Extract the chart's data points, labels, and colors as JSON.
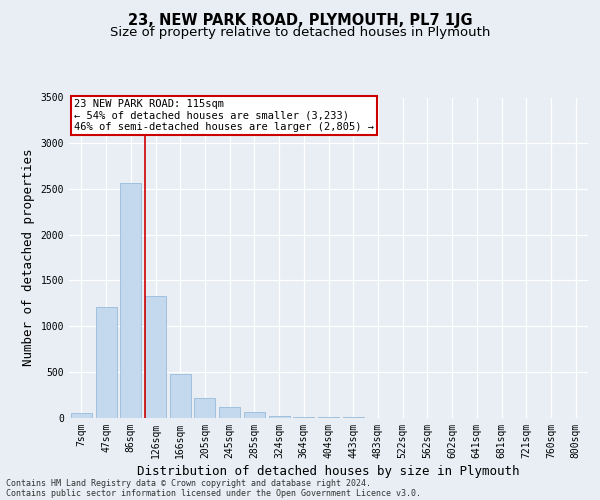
{
  "title": "23, NEW PARK ROAD, PLYMOUTH, PL7 1JG",
  "subtitle": "Size of property relative to detached houses in Plymouth",
  "xlabel": "Distribution of detached houses by size in Plymouth",
  "ylabel": "Number of detached properties",
  "categories": [
    "7sqm",
    "47sqm",
    "86sqm",
    "126sqm",
    "166sqm",
    "205sqm",
    "245sqm",
    "285sqm",
    "324sqm",
    "364sqm",
    "404sqm",
    "443sqm",
    "483sqm",
    "522sqm",
    "562sqm",
    "602sqm",
    "641sqm",
    "681sqm",
    "721sqm",
    "760sqm",
    "800sqm"
  ],
  "values": [
    50,
    1210,
    2570,
    1330,
    480,
    210,
    120,
    55,
    20,
    5,
    2,
    1,
    0,
    0,
    0,
    0,
    0,
    0,
    0,
    0,
    0
  ],
  "bar_color": "#c5d9ee",
  "bar_edgecolor": "#8ab4d8",
  "annotation_line1": "23 NEW PARK ROAD: 115sqm",
  "annotation_line2": "← 54% of detached houses are smaller (3,233)",
  "annotation_line3": "46% of semi-detached houses are larger (2,805) →",
  "annotation_box_color": "#ffffff",
  "annotation_box_edgecolor": "#cc0000",
  "vline_color": "#cc0000",
  "ylim": [
    0,
    3500
  ],
  "yticks": [
    0,
    500,
    1000,
    1500,
    2000,
    2500,
    3000,
    3500
  ],
  "footer_line1": "Contains HM Land Registry data © Crown copyright and database right 2024.",
  "footer_line2": "Contains public sector information licensed under the Open Government Licence v3.0.",
  "bg_color": "#e8eef4",
  "plot_bg_color": "#e8eef4",
  "grid_color": "#ffffff",
  "title_fontsize": 10.5,
  "subtitle_fontsize": 9.5,
  "axis_label_fontsize": 9,
  "tick_fontsize": 7,
  "annotation_fontsize": 7.5,
  "footer_fontsize": 6.0,
  "vline_x": 2.57
}
